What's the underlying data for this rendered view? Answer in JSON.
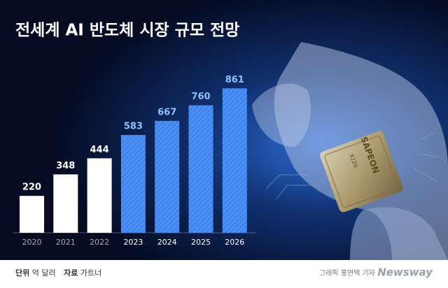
{
  "chart_data": {
    "type": "bar",
    "title": "전세계 AI 반도체 시장 규모 전망",
    "categories": [
      "2020",
      "2021",
      "2022",
      "2023",
      "2024",
      "2025",
      "2026"
    ],
    "values": [
      220,
      348,
      444,
      583,
      667,
      760,
      861
    ],
    "colors": [
      "#ffffff",
      "#ffffff",
      "#ffffff",
      "#3f86f0",
      "#3f86f0",
      "#3f86f0",
      "#3f86f0"
    ],
    "hatched": [
      false,
      false,
      false,
      true,
      true,
      true,
      true
    ],
    "label_colors": [
      "#ffffff",
      "#ffffff",
      "#ffffff",
      "#8cc0ff",
      "#8cc0ff",
      "#8cc0ff",
      "#8cc0ff"
    ],
    "category_colors": [
      "#a7adb8",
      "#a7adb8",
      "#a7adb8",
      "#ffffff",
      "#ffffff",
      "#ffffff",
      "#ffffff"
    ],
    "unit_label": "단위",
    "unit": "억 달러",
    "source_label": "자료",
    "source": "가트너",
    "credit": "그래픽 홍연택 기자",
    "brand": "Newsway",
    "chip_brand": "SAPEON",
    "chip_model": "X220"
  }
}
